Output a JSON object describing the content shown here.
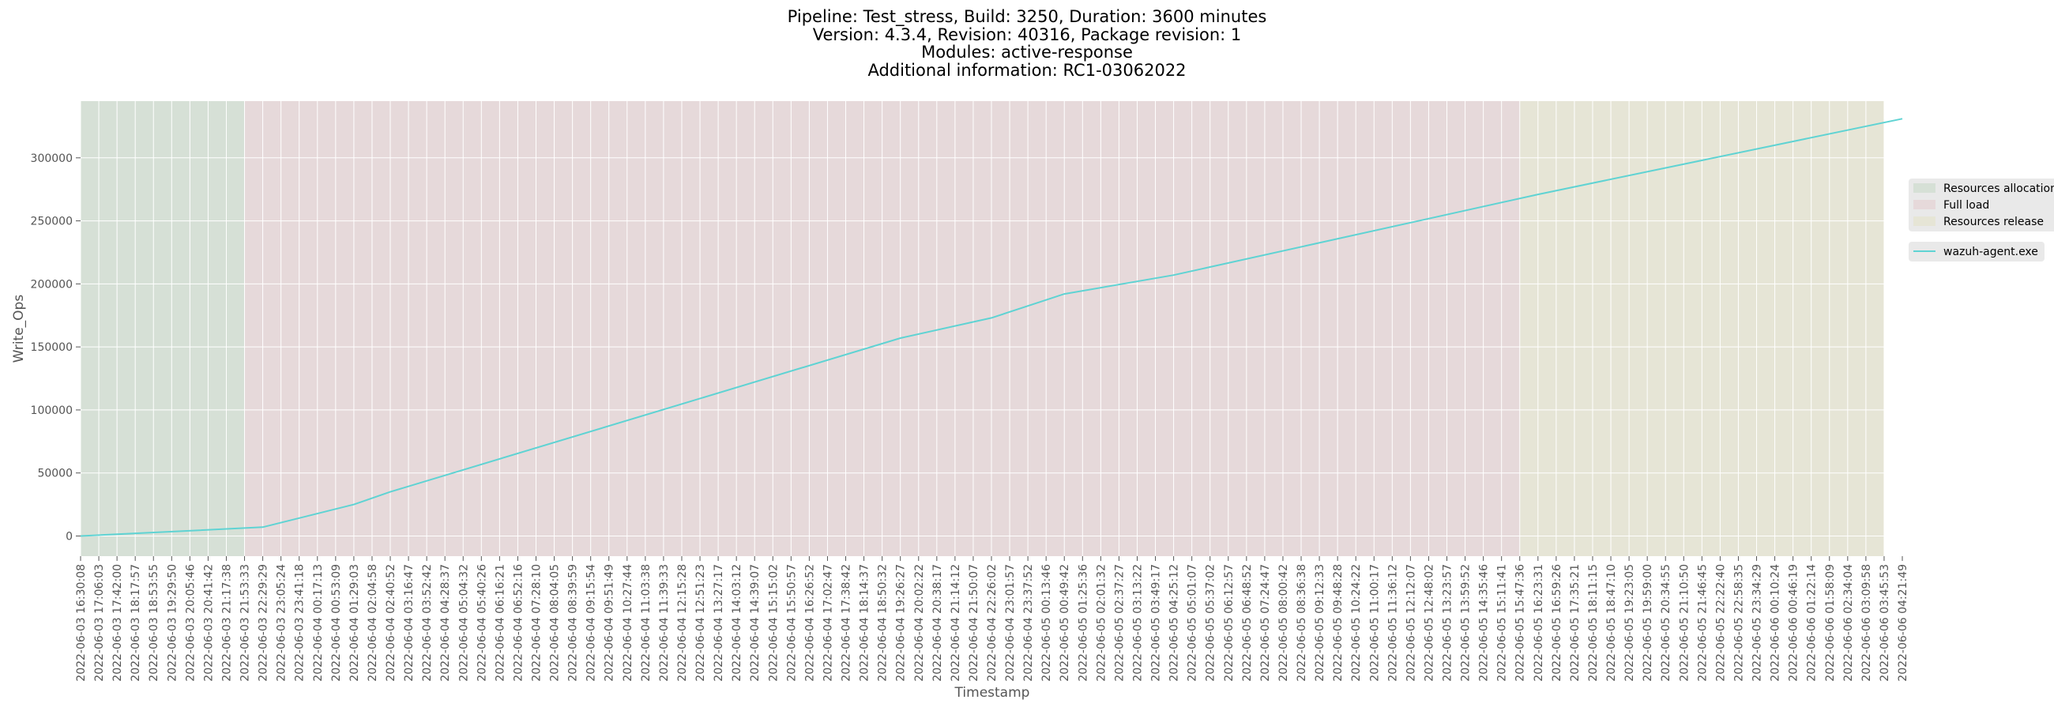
{
  "chart_data": {
    "type": "line",
    "title_lines": [
      "Pipeline: Test_stress, Build: 3250, Duration: 3600 minutes",
      "Version: 4.3.4, Revision: 40316, Package revision: 1",
      "Modules: active-response",
      "Additional information: RC1-03062022"
    ],
    "xlabel": "Timestamp",
    "ylabel": "Write_Ops",
    "ylim": [
      -16000,
      345000
    ],
    "y_ticks": [
      0,
      50000,
      100000,
      150000,
      200000,
      250000,
      300000
    ],
    "grid": true,
    "legend_position": "right",
    "phase_legend": [
      "Resources allocation",
      "Full load",
      "Resources release"
    ],
    "phases": [
      {
        "name": "Resources allocation",
        "start_index": 0,
        "end_index": 9,
        "color": "#d6e0d6"
      },
      {
        "name": "Full load",
        "start_index": 9,
        "end_index": 79,
        "color": "#e6d9da"
      },
      {
        "name": "Resources release",
        "start_index": 79,
        "end_index": 99,
        "color": "#e6e5d6"
      }
    ],
    "x_tick_labels": [
      "2022-06-03 16:30:08",
      "2022-06-03 17:06:03",
      "2022-06-03 17:42:00",
      "2022-06-03 18:17:57",
      "2022-06-03 18:53:55",
      "2022-06-03 19:29:50",
      "2022-06-03 20:05:46",
      "2022-06-03 20:41:42",
      "2022-06-03 21:17:38",
      "2022-06-03 21:53:33",
      "2022-06-03 22:29:29",
      "2022-06-03 23:05:24",
      "2022-06-03 23:41:18",
      "2022-06-04 00:17:13",
      "2022-06-04 00:53:09",
      "2022-06-04 01:29:03",
      "2022-06-04 02:04:58",
      "2022-06-04 02:40:52",
      "2022-06-04 03:16:47",
      "2022-06-04 03:52:42",
      "2022-06-04 04:28:37",
      "2022-06-04 05:04:32",
      "2022-06-04 05:40:26",
      "2022-06-04 06:16:21",
      "2022-06-04 06:52:16",
      "2022-06-04 07:28:10",
      "2022-06-04 08:04:05",
      "2022-06-04 08:39:59",
      "2022-06-04 09:15:54",
      "2022-06-04 09:51:49",
      "2022-06-04 10:27:44",
      "2022-06-04 11:03:38",
      "2022-06-04 11:39:33",
      "2022-06-04 12:15:28",
      "2022-06-04 12:51:23",
      "2022-06-04 13:27:17",
      "2022-06-04 14:03:12",
      "2022-06-04 14:39:07",
      "2022-06-04 15:15:02",
      "2022-06-04 15:50:57",
      "2022-06-04 16:26:52",
      "2022-06-04 17:02:47",
      "2022-06-04 17:38:42",
      "2022-06-04 18:14:37",
      "2022-06-04 18:50:32",
      "2022-06-04 19:26:27",
      "2022-06-04 20:02:22",
      "2022-06-04 20:38:17",
      "2022-06-04 21:14:12",
      "2022-06-04 21:50:07",
      "2022-06-04 22:26:02",
      "2022-06-04 23:01:57",
      "2022-06-04 23:37:52",
      "2022-06-05 00:13:46",
      "2022-06-05 00:49:42",
      "2022-06-05 01:25:36",
      "2022-06-05 02:01:32",
      "2022-06-05 02:37:27",
      "2022-06-05 03:13:22",
      "2022-06-05 03:49:17",
      "2022-06-05 04:25:12",
      "2022-06-05 05:01:07",
      "2022-06-05 05:37:02",
      "2022-06-05 06:12:57",
      "2022-06-05 06:48:52",
      "2022-06-05 07:24:47",
      "2022-06-05 08:00:42",
      "2022-06-05 08:36:38",
      "2022-06-05 09:12:33",
      "2022-06-05 09:48:28",
      "2022-06-05 10:24:22",
      "2022-06-05 11:00:17",
      "2022-06-05 11:36:12",
      "2022-06-05 12:12:07",
      "2022-06-05 12:48:02",
      "2022-06-05 13:23:57",
      "2022-06-05 13:59:52",
      "2022-06-05 14:35:46",
      "2022-06-05 15:11:41",
      "2022-06-05 15:47:36",
      "2022-06-05 16:23:31",
      "2022-06-05 16:59:26",
      "2022-06-05 17:35:21",
      "2022-06-05 18:11:15",
      "2022-06-05 18:47:10",
      "2022-06-05 19:23:05",
      "2022-06-05 19:59:00",
      "2022-06-05 20:34:55",
      "2022-06-05 21:10:50",
      "2022-06-05 21:46:45",
      "2022-06-05 22:22:40",
      "2022-06-05 22:58:35",
      "2022-06-05 23:34:29",
      "2022-06-06 00:10:24",
      "2022-06-06 00:46:19",
      "2022-06-06 01:22:14",
      "2022-06-06 01:58:09",
      "2022-06-06 02:34:04",
      "2022-06-06 03:09:58",
      "2022-06-06 03:45:53",
      "2022-06-06 04:21:49"
    ],
    "series": [
      {
        "name": "wazuh-agent.exe",
        "color": "#5fd3d3",
        "points": [
          {
            "x": "2022-06-03 16:30:08",
            "y": 0
          },
          {
            "x": "2022-06-03 22:29:29",
            "y": 7000
          },
          {
            "x": "2022-06-04 01:29:03",
            "y": 25000
          },
          {
            "x": "2022-06-04 02:40:52",
            "y": 35000
          },
          {
            "x": "2022-06-04 19:26:27",
            "y": 157000
          },
          {
            "x": "2022-06-04 22:26:02",
            "y": 173000
          },
          {
            "x": "2022-06-05 00:49:42",
            "y": 192000
          },
          {
            "x": "2022-06-05 04:25:12",
            "y": 207000
          },
          {
            "x": "2022-06-05 16:23:31",
            "y": 271000
          },
          {
            "x": "2022-06-06 04:21:49",
            "y": 331000
          }
        ]
      }
    ]
  }
}
